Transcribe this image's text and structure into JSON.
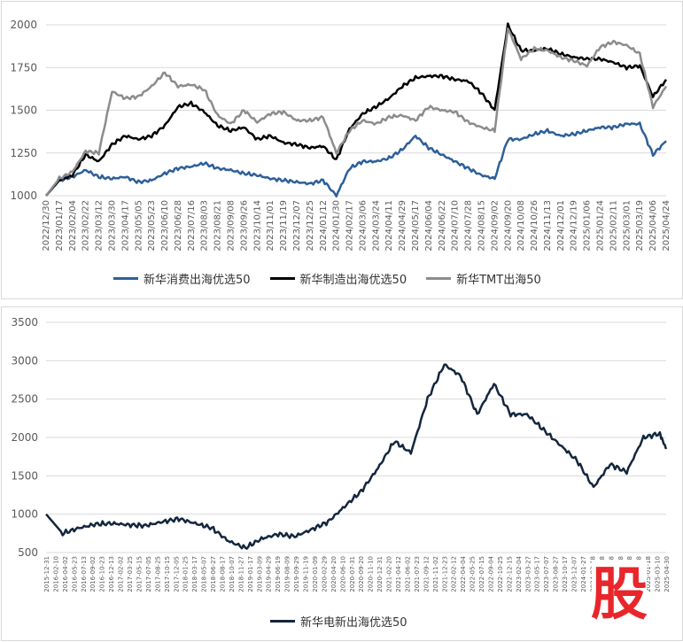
{
  "chart_data": [
    {
      "type": "line",
      "title": "",
      "ylim": [
        1000,
        2000
      ],
      "yticks": [
        1000,
        1250,
        1500,
        1750,
        2000
      ],
      "grid": true,
      "legend_position": "bottom",
      "x_tick_labels": [
        "2022/12/30",
        "2023/01/17",
        "2023/02/04",
        "2023/02/22",
        "2023/03/12",
        "2023/03/30",
        "2023/04/17",
        "2023/05/05",
        "2023/05/23",
        "2023/06/10",
        "2023/06/28",
        "2023/07/16",
        "2023/08/03",
        "2023/08/21",
        "2023/09/08",
        "2023/09/26",
        "2023/10/14",
        "2023/11/01",
        "2023/11/19",
        "2023/12/07",
        "2023/12/25",
        "2024/01/12",
        "2024/01/30",
        "2024/02/17",
        "2024/03/06",
        "2024/03/24",
        "2024/04/11",
        "2024/04/29",
        "2024/05/17",
        "2024/06/04",
        "2024/06/22",
        "2024/07/10",
        "2024/07/28",
        "2024/08/15",
        "2024/09/02",
        "2024/09/20",
        "2024/10/08",
        "2024/10/26",
        "2024/11/13",
        "2024/12/01",
        "2024/12/19",
        "2025/01/06",
        "2025/01/24",
        "2025/02/11",
        "2025/03/01",
        "2025/03/19",
        "2025/04/06",
        "2025/04/24"
      ],
      "x_dates": [
        "2022/12/30",
        "2023/01/17",
        "2023/02/04",
        "2023/02/22",
        "2023/03/12",
        "2023/03/30",
        "2023/04/17",
        "2023/05/05",
        "2023/05/23",
        "2023/06/10",
        "2023/06/28",
        "2023/07/16",
        "2023/08/03",
        "2023/08/21",
        "2023/09/08",
        "2023/09/26",
        "2023/10/14",
        "2023/11/01",
        "2023/11/19",
        "2023/12/07",
        "2023/12/25",
        "2024/01/12",
        "2024/01/30",
        "2024/02/17",
        "2024/03/06",
        "2024/03/24",
        "2024/04/11",
        "2024/04/29",
        "2024/05/17",
        "2024/06/04",
        "2024/06/22",
        "2024/07/10",
        "2024/07/28",
        "2024/08/15",
        "2024/09/02",
        "2024/09/20",
        "2024/10/08",
        "2024/10/26",
        "2024/11/13",
        "2024/12/01",
        "2024/12/19",
        "2025/01/06",
        "2025/01/24",
        "2025/02/11",
        "2025/03/01",
        "2025/03/19",
        "2025/04/06",
        "2025/04/24"
      ],
      "series": [
        {
          "name": "新华消费出海优选50",
          "color": "#2e5f99",
          "values": [
            1000,
            1090,
            1110,
            1150,
            1110,
            1100,
            1110,
            1080,
            1090,
            1130,
            1160,
            1170,
            1190,
            1160,
            1150,
            1130,
            1120,
            1100,
            1090,
            1080,
            1070,
            1090,
            1000,
            1160,
            1200,
            1200,
            1220,
            1270,
            1350,
            1280,
            1240,
            1200,
            1160,
            1120,
            1100,
            1330,
            1330,
            1360,
            1380,
            1350,
            1360,
            1380,
            1400,
            1400,
            1420,
            1420,
            1240,
            1320
          ]
        },
        {
          "name": "新华制造出海优选50",
          "color": "#000000",
          "values": [
            1000,
            1090,
            1120,
            1240,
            1200,
            1300,
            1350,
            1330,
            1350,
            1410,
            1520,
            1540,
            1490,
            1410,
            1380,
            1400,
            1330,
            1350,
            1310,
            1300,
            1280,
            1290,
            1210,
            1390,
            1480,
            1520,
            1570,
            1640,
            1690,
            1700,
            1700,
            1680,
            1670,
            1600,
            1500,
            2000,
            1850,
            1850,
            1860,
            1830,
            1810,
            1800,
            1800,
            1780,
            1750,
            1760,
            1580,
            1680
          ]
        },
        {
          "name": "新华TMT出海50",
          "color": "#8c8c8c",
          "values": [
            1000,
            1100,
            1140,
            1260,
            1250,
            1610,
            1570,
            1580,
            1640,
            1720,
            1640,
            1650,
            1620,
            1470,
            1420,
            1500,
            1430,
            1480,
            1490,
            1440,
            1440,
            1460,
            1250,
            1380,
            1440,
            1420,
            1460,
            1470,
            1440,
            1520,
            1500,
            1490,
            1430,
            1400,
            1380,
            1980,
            1800,
            1860,
            1850,
            1810,
            1790,
            1760,
            1870,
            1900,
            1880,
            1830,
            1520,
            1640
          ]
        }
      ]
    },
    {
      "type": "line",
      "title": "",
      "ylim": [
        500,
        3500
      ],
      "yticks": [
        500,
        1000,
        1500,
        2000,
        2500,
        3000,
        3500
      ],
      "grid": true,
      "legend_position": "bottom",
      "x_tick_labels": [
        "2015-12-31",
        "2016-02-10",
        "2016-04-02",
        "2016-05-23",
        "2016-07-13",
        "2016-09-02",
        "2016-10-23",
        "2016-12-13",
        "2017-02-02",
        "2017-03-25",
        "2017-05-15",
        "2017-07-05",
        "2017-08-25",
        "2017-10-15",
        "2017-12-05",
        "2018-01-25",
        "2018-03-17",
        "2018-05-07",
        "2018-06-27",
        "2018-08-17",
        "2018-10-07",
        "2018-11-27",
        "2019-01-17",
        "2019-03-09",
        "2019-04-29",
        "2019-06-19",
        "2019-08-09",
        "2019-09-29",
        "2019-11-19",
        "2020-01-09",
        "2020-02-29",
        "2020-04-20",
        "2020-06-10",
        "2020-07-31",
        "2020-09-20",
        "2020-11-10",
        "2020-12-31",
        "2021-02-20",
        "2021-04-12",
        "2021-06-02",
        "2021-07-23",
        "2021-09-12",
        "2021-11-02",
        "2021-12-23",
        "2022-02-12",
        "2022-04-04",
        "2022-05-25",
        "2022-07-15",
        "2022-09-04",
        "2022-10-25",
        "2022-12-15",
        "2023-02-04",
        "2023-03-27",
        "2023-05-17",
        "2023-07-07",
        "2023-08-27",
        "2023-10-17",
        "2023-12-07",
        "2024-01-27",
        "2024-03-18",
        "2024-05-08",
        "2024-06-28",
        "2024-08-18",
        "2024-10-08",
        "2024-11-28",
        "2025-01-18",
        "2025-03-10",
        "2025-04-30"
      ],
      "x_dates": [
        "2015-12-31",
        "2016-03-31",
        "2016-06-30",
        "2016-09-30",
        "2016-12-31",
        "2017-03-31",
        "2017-06-30",
        "2017-09-30",
        "2017-12-31",
        "2018-03-31",
        "2018-06-30",
        "2018-09-30",
        "2018-12-31",
        "2019-03-31",
        "2019-06-30",
        "2019-09-30",
        "2019-12-31",
        "2020-03-31",
        "2020-06-30",
        "2020-09-30",
        "2020-12-31",
        "2021-03-31",
        "2021-06-30",
        "2021-09-30",
        "2021-12-31",
        "2022-03-31",
        "2022-06-30",
        "2022-09-30",
        "2022-12-31",
        "2023-03-31",
        "2023-06-30",
        "2023-09-30",
        "2023-12-31",
        "2024-03-31",
        "2024-06-30",
        "2024-09-30",
        "2024-12-31",
        "2025-03-31",
        "2025-05-05"
      ],
      "series": [
        {
          "name": "新华电新出海优选50",
          "color": "#14263d",
          "values": [
            1000,
            750,
            820,
            870,
            880,
            860,
            850,
            900,
            940,
            880,
            820,
            650,
            560,
            680,
            740,
            710,
            800,
            900,
            1100,
            1300,
            1600,
            1950,
            1800,
            2500,
            2950,
            2800,
            2300,
            2700,
            2300,
            2300,
            2100,
            1900,
            1700,
            1350,
            1650,
            1550,
            2000,
            2050,
            1850
          ]
        }
      ]
    }
  ],
  "legend1": [
    {
      "label": "新华消费出海优选50",
      "color": "#2e5f99"
    },
    {
      "label": "新华制造出海优选50",
      "color": "#000000"
    },
    {
      "label": "新华TMT出海50",
      "color": "#8c8c8c"
    }
  ],
  "legend2": [
    {
      "label": "新华电新出海优选50",
      "color": "#14263d"
    }
  ],
  "watermark": {
    "text": "股",
    "color": "#e8262b"
  }
}
